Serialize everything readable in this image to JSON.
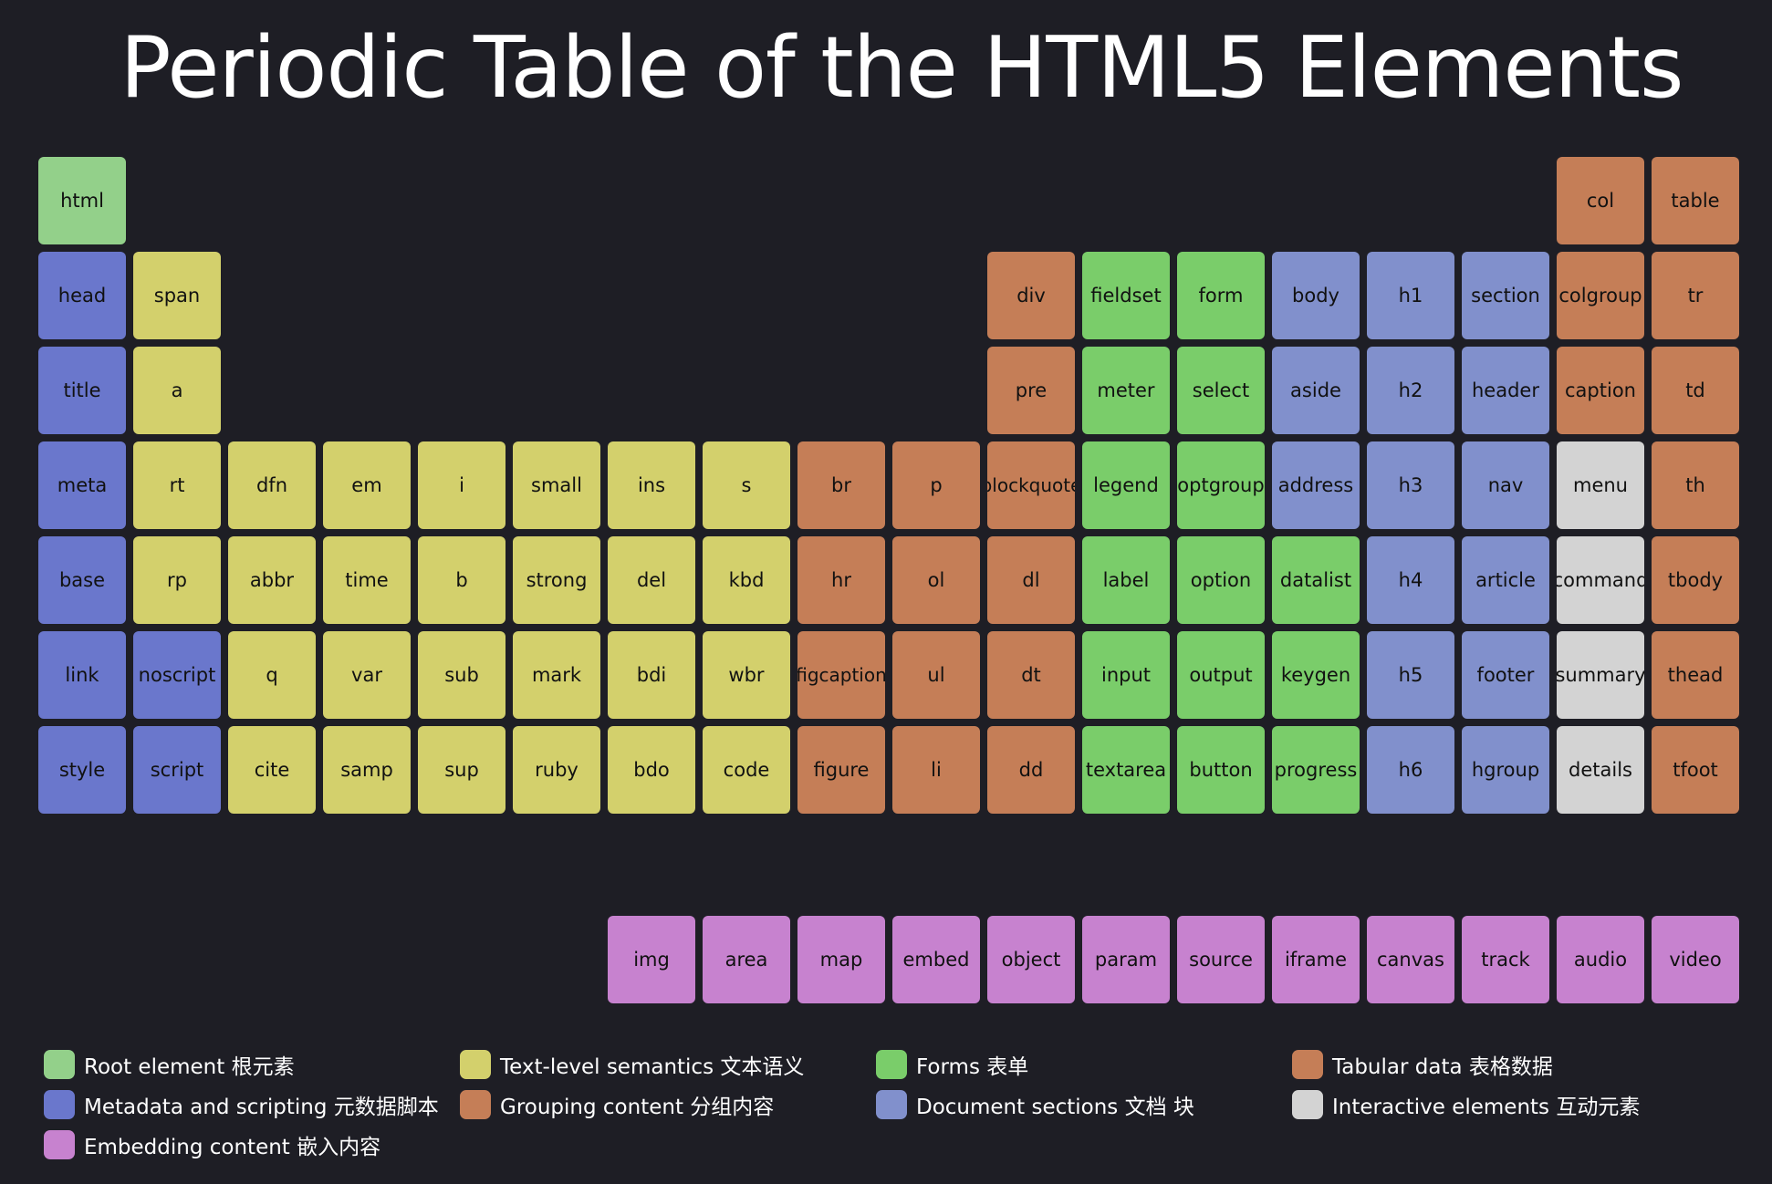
{
  "title": "Periodic Table of the HTML5 Elements",
  "colors": {
    "root": "#93d08a",
    "meta": "#6a77cc",
    "text": "#d3d06c",
    "grouping": "#c57e57",
    "forms": "#7acd6a",
    "sections": "#8190cc",
    "interactive": "#d3d3d3",
    "tabular": "#c57e57",
    "embedding": "#c782cf"
  },
  "elements": [
    {
      "label": "html",
      "col": 0,
      "row": 0,
      "cat": "root"
    },
    {
      "label": "col",
      "col": 16,
      "row": 0,
      "cat": "tabular"
    },
    {
      "label": "table",
      "col": 17,
      "row": 0,
      "cat": "tabular"
    },
    {
      "label": "head",
      "col": 0,
      "row": 1,
      "cat": "meta"
    },
    {
      "label": "span",
      "col": 1,
      "row": 1,
      "cat": "text"
    },
    {
      "label": "div",
      "col": 10,
      "row": 1,
      "cat": "grouping"
    },
    {
      "label": "fieldset",
      "col": 11,
      "row": 1,
      "cat": "forms"
    },
    {
      "label": "form",
      "col": 12,
      "row": 1,
      "cat": "forms"
    },
    {
      "label": "body",
      "col": 13,
      "row": 1,
      "cat": "sections"
    },
    {
      "label": "h1",
      "col": 14,
      "row": 1,
      "cat": "sections"
    },
    {
      "label": "section",
      "col": 15,
      "row": 1,
      "cat": "sections"
    },
    {
      "label": "colgroup",
      "col": 16,
      "row": 1,
      "cat": "tabular"
    },
    {
      "label": "tr",
      "col": 17,
      "row": 1,
      "cat": "tabular"
    },
    {
      "label": "title",
      "col": 0,
      "row": 2,
      "cat": "meta"
    },
    {
      "label": "a",
      "col": 1,
      "row": 2,
      "cat": "text"
    },
    {
      "label": "pre",
      "col": 10,
      "row": 2,
      "cat": "grouping"
    },
    {
      "label": "meter",
      "col": 11,
      "row": 2,
      "cat": "forms"
    },
    {
      "label": "select",
      "col": 12,
      "row": 2,
      "cat": "forms"
    },
    {
      "label": "aside",
      "col": 13,
      "row": 2,
      "cat": "sections"
    },
    {
      "label": "h2",
      "col": 14,
      "row": 2,
      "cat": "sections"
    },
    {
      "label": "header",
      "col": 15,
      "row": 2,
      "cat": "sections"
    },
    {
      "label": "caption",
      "col": 16,
      "row": 2,
      "cat": "tabular"
    },
    {
      "label": "td",
      "col": 17,
      "row": 2,
      "cat": "tabular"
    },
    {
      "label": "meta",
      "col": 0,
      "row": 3,
      "cat": "meta"
    },
    {
      "label": "rt",
      "col": 1,
      "row": 3,
      "cat": "text"
    },
    {
      "label": "dfn",
      "col": 2,
      "row": 3,
      "cat": "text"
    },
    {
      "label": "em",
      "col": 3,
      "row": 3,
      "cat": "text"
    },
    {
      "label": "i",
      "col": 4,
      "row": 3,
      "cat": "text"
    },
    {
      "label": "small",
      "col": 5,
      "row": 3,
      "cat": "text"
    },
    {
      "label": "ins",
      "col": 6,
      "row": 3,
      "cat": "text"
    },
    {
      "label": "s",
      "col": 7,
      "row": 3,
      "cat": "text"
    },
    {
      "label": "br",
      "col": 8,
      "row": 3,
      "cat": "grouping"
    },
    {
      "label": "p",
      "col": 9,
      "row": 3,
      "cat": "grouping"
    },
    {
      "label": "blockquote",
      "col": 10,
      "row": 3,
      "cat": "grouping"
    },
    {
      "label": "legend",
      "col": 11,
      "row": 3,
      "cat": "forms"
    },
    {
      "label": "optgroup",
      "col": 12,
      "row": 3,
      "cat": "forms"
    },
    {
      "label": "address",
      "col": 13,
      "row": 3,
      "cat": "sections"
    },
    {
      "label": "h3",
      "col": 14,
      "row": 3,
      "cat": "sections"
    },
    {
      "label": "nav",
      "col": 15,
      "row": 3,
      "cat": "sections"
    },
    {
      "label": "menu",
      "col": 16,
      "row": 3,
      "cat": "interactive"
    },
    {
      "label": "th",
      "col": 17,
      "row": 3,
      "cat": "tabular"
    },
    {
      "label": "base",
      "col": 0,
      "row": 4,
      "cat": "meta"
    },
    {
      "label": "rp",
      "col": 1,
      "row": 4,
      "cat": "text"
    },
    {
      "label": "abbr",
      "col": 2,
      "row": 4,
      "cat": "text"
    },
    {
      "label": "time",
      "col": 3,
      "row": 4,
      "cat": "text"
    },
    {
      "label": "b",
      "col": 4,
      "row": 4,
      "cat": "text"
    },
    {
      "label": "strong",
      "col": 5,
      "row": 4,
      "cat": "text"
    },
    {
      "label": "del",
      "col": 6,
      "row": 4,
      "cat": "text"
    },
    {
      "label": "kbd",
      "col": 7,
      "row": 4,
      "cat": "text"
    },
    {
      "label": "hr",
      "col": 8,
      "row": 4,
      "cat": "grouping"
    },
    {
      "label": "ol",
      "col": 9,
      "row": 4,
      "cat": "grouping"
    },
    {
      "label": "dl",
      "col": 10,
      "row": 4,
      "cat": "grouping"
    },
    {
      "label": "label",
      "col": 11,
      "row": 4,
      "cat": "forms"
    },
    {
      "label": "option",
      "col": 12,
      "row": 4,
      "cat": "forms"
    },
    {
      "label": "datalist",
      "col": 13,
      "row": 4,
      "cat": "forms"
    },
    {
      "label": "h4",
      "col": 14,
      "row": 4,
      "cat": "sections"
    },
    {
      "label": "article",
      "col": 15,
      "row": 4,
      "cat": "sections"
    },
    {
      "label": "command",
      "col": 16,
      "row": 4,
      "cat": "interactive"
    },
    {
      "label": "tbody",
      "col": 17,
      "row": 4,
      "cat": "tabular"
    },
    {
      "label": "link",
      "col": 0,
      "row": 5,
      "cat": "meta"
    },
    {
      "label": "noscript",
      "col": 1,
      "row": 5,
      "cat": "meta"
    },
    {
      "label": "q",
      "col": 2,
      "row": 5,
      "cat": "text"
    },
    {
      "label": "var",
      "col": 3,
      "row": 5,
      "cat": "text"
    },
    {
      "label": "sub",
      "col": 4,
      "row": 5,
      "cat": "text"
    },
    {
      "label": "mark",
      "col": 5,
      "row": 5,
      "cat": "text"
    },
    {
      "label": "bdi",
      "col": 6,
      "row": 5,
      "cat": "text"
    },
    {
      "label": "wbr",
      "col": 7,
      "row": 5,
      "cat": "text"
    },
    {
      "label": "figcaption",
      "col": 8,
      "row": 5,
      "cat": "grouping"
    },
    {
      "label": "ul",
      "col": 9,
      "row": 5,
      "cat": "grouping"
    },
    {
      "label": "dt",
      "col": 10,
      "row": 5,
      "cat": "grouping"
    },
    {
      "label": "input",
      "col": 11,
      "row": 5,
      "cat": "forms"
    },
    {
      "label": "output",
      "col": 12,
      "row": 5,
      "cat": "forms"
    },
    {
      "label": "keygen",
      "col": 13,
      "row": 5,
      "cat": "forms"
    },
    {
      "label": "h5",
      "col": 14,
      "row": 5,
      "cat": "sections"
    },
    {
      "label": "footer",
      "col": 15,
      "row": 5,
      "cat": "sections"
    },
    {
      "label": "summary",
      "col": 16,
      "row": 5,
      "cat": "interactive"
    },
    {
      "label": "thead",
      "col": 17,
      "row": 5,
      "cat": "tabular"
    },
    {
      "label": "style",
      "col": 0,
      "row": 6,
      "cat": "meta"
    },
    {
      "label": "script",
      "col": 1,
      "row": 6,
      "cat": "meta"
    },
    {
      "label": "cite",
      "col": 2,
      "row": 6,
      "cat": "text"
    },
    {
      "label": "samp",
      "col": 3,
      "row": 6,
      "cat": "text"
    },
    {
      "label": "sup",
      "col": 4,
      "row": 6,
      "cat": "text"
    },
    {
      "label": "ruby",
      "col": 5,
      "row": 6,
      "cat": "text"
    },
    {
      "label": "bdo",
      "col": 6,
      "row": 6,
      "cat": "text"
    },
    {
      "label": "code",
      "col": 7,
      "row": 6,
      "cat": "text"
    },
    {
      "label": "figure",
      "col": 8,
      "row": 6,
      "cat": "grouping"
    },
    {
      "label": "li",
      "col": 9,
      "row": 6,
      "cat": "grouping"
    },
    {
      "label": "dd",
      "col": 10,
      "row": 6,
      "cat": "grouping"
    },
    {
      "label": "textarea",
      "col": 11,
      "row": 6,
      "cat": "forms"
    },
    {
      "label": "button",
      "col": 12,
      "row": 6,
      "cat": "forms"
    },
    {
      "label": "progress",
      "col": 13,
      "row": 6,
      "cat": "forms"
    },
    {
      "label": "h6",
      "col": 14,
      "row": 6,
      "cat": "sections"
    },
    {
      "label": "hgroup",
      "col": 15,
      "row": 6,
      "cat": "sections"
    },
    {
      "label": "details",
      "col": 16,
      "row": 6,
      "cat": "interactive"
    },
    {
      "label": "tfoot",
      "col": 17,
      "row": 6,
      "cat": "tabular"
    },
    {
      "label": "img",
      "col": 6,
      "row": 8,
      "cat": "embedding"
    },
    {
      "label": "area",
      "col": 7,
      "row": 8,
      "cat": "embedding"
    },
    {
      "label": "map",
      "col": 8,
      "row": 8,
      "cat": "embedding"
    },
    {
      "label": "embed",
      "col": 9,
      "row": 8,
      "cat": "embedding"
    },
    {
      "label": "object",
      "col": 10,
      "row": 8,
      "cat": "embedding"
    },
    {
      "label": "param",
      "col": 11,
      "row": 8,
      "cat": "embedding"
    },
    {
      "label": "source",
      "col": 12,
      "row": 8,
      "cat": "embedding"
    },
    {
      "label": "iframe",
      "col": 13,
      "row": 8,
      "cat": "embedding"
    },
    {
      "label": "canvas",
      "col": 14,
      "row": 8,
      "cat": "embedding"
    },
    {
      "label": "track",
      "col": 15,
      "row": 8,
      "cat": "embedding"
    },
    {
      "label": "audio",
      "col": 16,
      "row": 8,
      "cat": "embedding"
    },
    {
      "label": "video",
      "col": 17,
      "row": 8,
      "cat": "embedding"
    }
  ],
  "legend": [
    {
      "label": "Root element 根元素",
      "cat": "root",
      "lcol": 0,
      "lrow": 0
    },
    {
      "label": "Text-level semantics 文本语义",
      "cat": "text",
      "lcol": 1,
      "lrow": 0
    },
    {
      "label": "Forms 表单",
      "cat": "forms",
      "lcol": 2,
      "lrow": 0
    },
    {
      "label": "Tabular data 表格数据",
      "cat": "tabular",
      "lcol": 3,
      "lrow": 0
    },
    {
      "label": "Metadata and scripting 元数据脚本",
      "cat": "meta",
      "lcol": 0,
      "lrow": 1
    },
    {
      "label": "Grouping content 分组内容",
      "cat": "grouping",
      "lcol": 1,
      "lrow": 1
    },
    {
      "label": "Document sections 文档 块",
      "cat": "sections",
      "lcol": 2,
      "lrow": 1
    },
    {
      "label": "Interactive elements 互动元素",
      "cat": "interactive",
      "lcol": 3,
      "lrow": 1
    },
    {
      "label": "Embedding content 嵌入内容",
      "cat": "embedding",
      "lcol": 0,
      "lrow": 2
    }
  ]
}
